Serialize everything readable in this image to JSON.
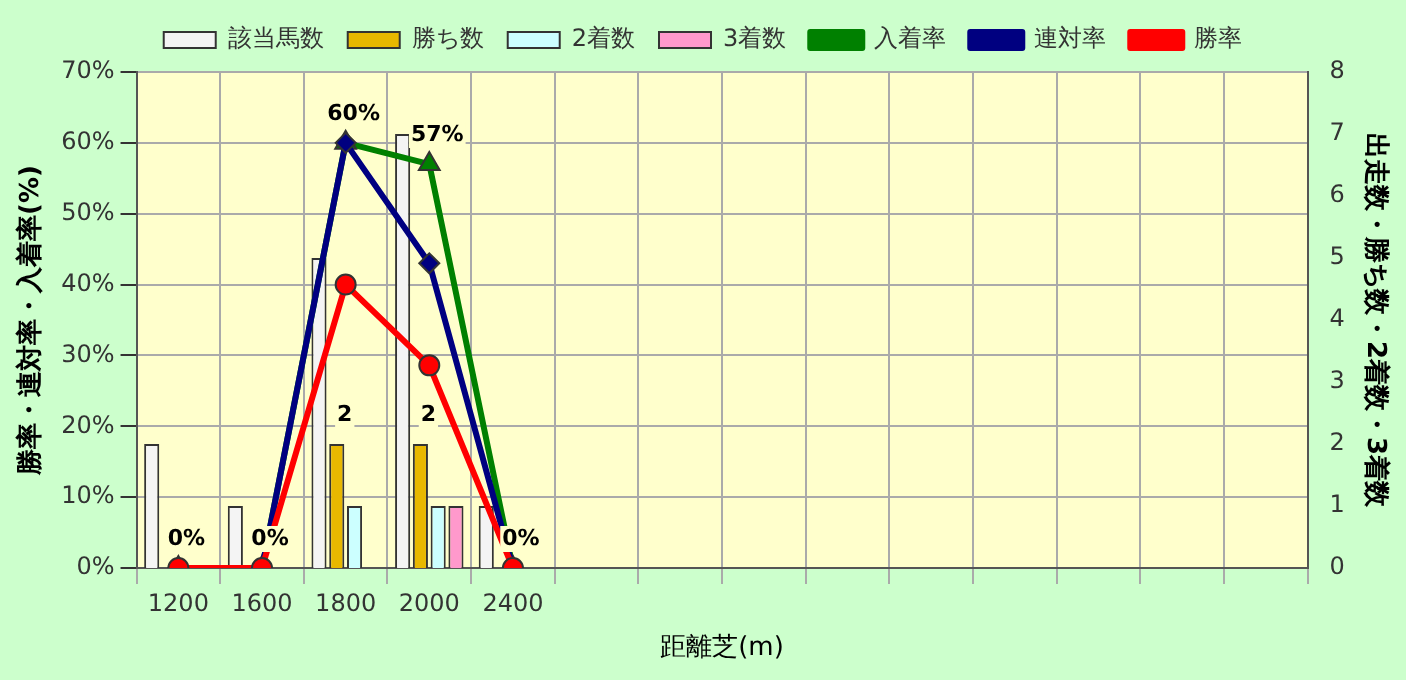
{
  "chart_data": {
    "type": "bar",
    "xlabel": "距離芝(m)",
    "ylabel": "勝率・連対率・入着率(%)",
    "y2label": "出走数・勝ち数・2着数・3着数",
    "categories": [
      "1200",
      "1600",
      "1800",
      "2000",
      "2400",
      null,
      null,
      null,
      null,
      null,
      null,
      null,
      null,
      null
    ],
    "series": [
      {
        "name": "該当馬数",
        "axis": "y2",
        "color": "#f4f4f4",
        "values": [
          2,
          1,
          5,
          7,
          1,
          null,
          null,
          null,
          null,
          null,
          null,
          null,
          null,
          null
        ]
      },
      {
        "name": "勝ち数",
        "axis": "y2",
        "color": "#e8b800",
        "values": [
          0,
          0,
          2,
          2,
          0,
          null,
          null,
          null,
          null,
          null,
          null,
          null,
          null,
          null
        ],
        "value_labels": [
          null,
          null,
          "2",
          "2",
          null,
          null,
          null,
          null,
          null,
          null,
          null,
          null,
          null,
          null
        ]
      },
      {
        "name": "2着数",
        "axis": "y2",
        "color": "#ccffff",
        "values": [
          0,
          0,
          1,
          1,
          0,
          null,
          null,
          null,
          null,
          null,
          null,
          null,
          null,
          null
        ]
      },
      {
        "name": "3着数",
        "axis": "y2",
        "color": "#ff99cc",
        "values": [
          0,
          0,
          0,
          1,
          0,
          null,
          null,
          null,
          null,
          null,
          null,
          null,
          null,
          null
        ]
      },
      {
        "name": "入着率",
        "type": "line",
        "color": "#008000",
        "marker": "triangle",
        "values": [
          0,
          0,
          60,
          57,
          0,
          null,
          null,
          null,
          null,
          null,
          null,
          null,
          null,
          null
        ],
        "value_labels": [
          "0%",
          "0%",
          "60%",
          "57%",
          "0%",
          null,
          null,
          null,
          null,
          null,
          null,
          null,
          null,
          null
        ]
      },
      {
        "name": "連対率",
        "type": "line",
        "color": "#000080",
        "marker": "diamond",
        "values": [
          0,
          0,
          60,
          43,
          0,
          null,
          null,
          null,
          null,
          null,
          null,
          null,
          null,
          null
        ]
      },
      {
        "name": "勝率",
        "type": "line",
        "color": "#ff0000",
        "marker": "circle",
        "values": [
          0,
          0,
          40,
          28.6,
          0,
          null,
          null,
          null,
          null,
          null,
          null,
          null,
          null,
          null
        ]
      }
    ],
    "ylim": [
      0,
      70
    ],
    "yticks": [
      {
        "value": 0,
        "label": "0%"
      },
      {
        "value": 10,
        "label": "10%"
      },
      {
        "value": 20,
        "label": "20%"
      },
      {
        "value": 30,
        "label": "30%"
      },
      {
        "value": 40,
        "label": "40%"
      },
      {
        "value": 50,
        "label": "50%"
      },
      {
        "value": 60,
        "label": "60%"
      },
      {
        "value": 70,
        "label": "70%"
      }
    ],
    "y2lim": [
      0,
      8
    ],
    "y2ticks": [
      0,
      1,
      2,
      3,
      4,
      5,
      6,
      7,
      8
    ],
    "grid": true,
    "legend": "top"
  }
}
